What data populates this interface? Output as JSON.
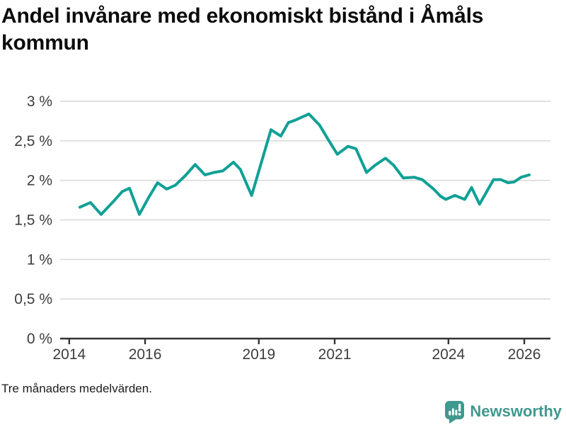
{
  "header": {
    "title": "Andel invånare med ekonomiskt bistånd i Åmåls kommun"
  },
  "footer": {
    "note": "Tre månaders medelvärden."
  },
  "branding": {
    "name": "Newsworthy",
    "icon": "newsworthy-chart-bubble-icon",
    "color": "#3f998f"
  },
  "colors": {
    "line": "#10a096",
    "grid": "#dbdbdb",
    "axis": "#333333",
    "tick_text": "#3d3d3d",
    "title_text": "#0c0c0c",
    "background": "#ffffff"
  },
  "chart_data": {
    "type": "line",
    "title": "Andel invånare med ekonomiskt bistånd i Åmåls kommun",
    "subtitle_note": "Tre månaders medelvärden.",
    "unit": "%",
    "decimal_separator": ",",
    "grid": true,
    "legend": "none",
    "xlim": [
      2013.76,
      2026.69
    ],
    "ylim": [
      0,
      3
    ],
    "y_ticks": [
      {
        "value": 0,
        "label": "0 %"
      },
      {
        "value": 0.5,
        "label": "0,5 %"
      },
      {
        "value": 1,
        "label": "1 %"
      },
      {
        "value": 1.5,
        "label": "1,5 %"
      },
      {
        "value": 2,
        "label": "2 %"
      },
      {
        "value": 2.5,
        "label": "2,5 %"
      },
      {
        "value": 3,
        "label": "3 %"
      }
    ],
    "x_ticks": [
      {
        "value": 2014,
        "label": "2014"
      },
      {
        "value": 2016,
        "label": "2016"
      },
      {
        "value": 2019,
        "label": "2019"
      },
      {
        "value": 2021,
        "label": "2021"
      },
      {
        "value": 2024,
        "label": "2024"
      },
      {
        "value": 2026,
        "label": "2026"
      }
    ],
    "series": [
      {
        "color": "#10a096",
        "points": [
          [
            2014.28,
            1.66
          ],
          [
            2014.56,
            1.72
          ],
          [
            2014.84,
            1.57
          ],
          [
            2015.16,
            1.73
          ],
          [
            2015.4,
            1.86
          ],
          [
            2015.59,
            1.9
          ],
          [
            2015.85,
            1.57
          ],
          [
            2016.09,
            1.78
          ],
          [
            2016.33,
            1.97
          ],
          [
            2016.57,
            1.89
          ],
          [
            2016.8,
            1.94
          ],
          [
            2017.06,
            2.06
          ],
          [
            2017.32,
            2.2
          ],
          [
            2017.58,
            2.07
          ],
          [
            2017.81,
            2.1
          ],
          [
            2018.05,
            2.12
          ],
          [
            2018.33,
            2.23
          ],
          [
            2018.51,
            2.14
          ],
          [
            2018.81,
            1.81
          ],
          [
            2019.32,
            2.64
          ],
          [
            2019.58,
            2.56
          ],
          [
            2019.78,
            2.73
          ],
          [
            2019.95,
            2.76
          ],
          [
            2020.32,
            2.84
          ],
          [
            2020.6,
            2.7
          ],
          [
            2020.85,
            2.5
          ],
          [
            2021.07,
            2.33
          ],
          [
            2021.35,
            2.43
          ],
          [
            2021.56,
            2.4
          ],
          [
            2021.84,
            2.1
          ],
          [
            2022.06,
            2.19
          ],
          [
            2022.34,
            2.28
          ],
          [
            2022.56,
            2.19
          ],
          [
            2022.81,
            2.03
          ],
          [
            2023.09,
            2.04
          ],
          [
            2023.31,
            2.01
          ],
          [
            2023.61,
            1.89
          ],
          [
            2023.79,
            1.8
          ],
          [
            2023.93,
            1.76
          ],
          [
            2024.17,
            1.81
          ],
          [
            2024.43,
            1.76
          ],
          [
            2024.61,
            1.91
          ],
          [
            2024.82,
            1.7
          ],
          [
            2025.19,
            2.01
          ],
          [
            2025.38,
            2.01
          ],
          [
            2025.57,
            1.97
          ],
          [
            2025.73,
            1.98
          ],
          [
            2025.92,
            2.04
          ],
          [
            2026.13,
            2.07
          ]
        ]
      }
    ]
  }
}
